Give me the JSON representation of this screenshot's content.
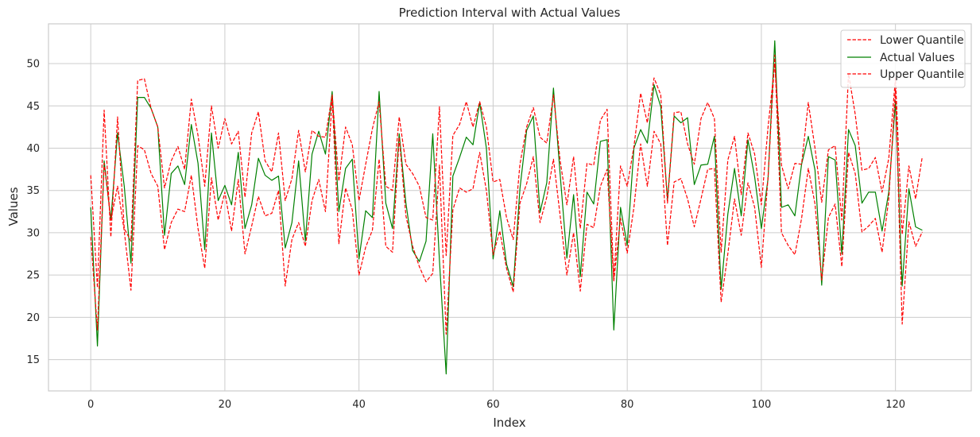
{
  "chart_data": {
    "type": "line",
    "title": "Prediction Interval with Actual Values",
    "xlabel": "Index",
    "ylabel": "Values",
    "xlim": [
      -6.3,
      131.3
    ],
    "ylim": [
      11.3,
      54.7
    ],
    "xticks": [
      0,
      20,
      40,
      60,
      80,
      100,
      120
    ],
    "yticks": [
      15,
      20,
      25,
      30,
      35,
      40,
      45,
      50
    ],
    "grid": true,
    "legend_position": "top-right",
    "series": [
      {
        "name": "Lower Quantile",
        "color": "#ff0000",
        "style": "dashed",
        "values": [
          29.5,
          18.5,
          38.2,
          31.5,
          35.5,
          30.2,
          23.2,
          40.3,
          39.8,
          37.0,
          35.5,
          28.0,
          31.2,
          32.8,
          32.5,
          36.8,
          30.5,
          25.8,
          36.5,
          31.5,
          34.8,
          30.2,
          36.3,
          27.5,
          30.8,
          34.3,
          32.0,
          32.3,
          35.0,
          23.7,
          29.2,
          31.2,
          28.4,
          33.8,
          36.3,
          32.5,
          46.0,
          28.7,
          35.3,
          32.7,
          25.0,
          28.3,
          30.3,
          38.7,
          28.4,
          27.7,
          41.3,
          32.0,
          28.4,
          26.0,
          24.2,
          25.2,
          38.0,
          18.0,
          32.7,
          35.3,
          34.8,
          35.2,
          39.5,
          35.0,
          27.4,
          30.2,
          25.8,
          23.0,
          33.5,
          35.8,
          39.0,
          31.2,
          34.2,
          38.7,
          32.0,
          25.0,
          30.0,
          23.1,
          31.0,
          30.6,
          35.5,
          37.5,
          24.3,
          31.7,
          27.6,
          33.0,
          40.5,
          35.5,
          42.0,
          40.5,
          28.5,
          36.0,
          36.4,
          34.0,
          30.7,
          34.0,
          37.5,
          37.6,
          21.8,
          27.5,
          34.0,
          29.7,
          35.9,
          33.0,
          25.9,
          36.6,
          51.0,
          30.0,
          28.5,
          27.4,
          31.7,
          37.6,
          33.4,
          24.4,
          31.8,
          33.4,
          26.0,
          39.5,
          37.0,
          30.1,
          30.8,
          31.7,
          27.7,
          34.0,
          47.0,
          19.2,
          31.3,
          28.4,
          30.1
        ]
      },
      {
        "name": "Actual Values",
        "color": "#008000",
        "style": "solid",
        "values": [
          33.0,
          16.6,
          38.5,
          31.5,
          41.8,
          35.5,
          26.4,
          46.0,
          46.0,
          44.7,
          42.5,
          29.7,
          37.0,
          37.9,
          35.7,
          42.8,
          38.2,
          28.0,
          41.8,
          33.8,
          35.6,
          33.3,
          39.5,
          30.5,
          33.3,
          38.8,
          36.8,
          36.2,
          36.7,
          28.2,
          31.2,
          38.5,
          29.0,
          39.3,
          42.0,
          39.3,
          46.7,
          32.5,
          37.6,
          38.7,
          26.9,
          32.6,
          31.8,
          46.7,
          33.5,
          30.5,
          41.7,
          33.5,
          27.9,
          26.6,
          29.0,
          41.7,
          26.7,
          13.3,
          36.7,
          38.9,
          41.3,
          40.4,
          45.4,
          40.0,
          26.9,
          32.6,
          26.3,
          23.6,
          35.2,
          42.1,
          43.8,
          32.4,
          35.9,
          47.1,
          36.9,
          27.0,
          34.5,
          24.8,
          34.8,
          33.4,
          40.8,
          41.0,
          18.5,
          33.0,
          28.5,
          40.0,
          42.2,
          40.6,
          47.5,
          44.9,
          33.9,
          43.8,
          43.0,
          43.6,
          35.7,
          38.0,
          38.1,
          41.4,
          23.3,
          32.2,
          37.6,
          32.0,
          41.0,
          36.6,
          30.5,
          36.4,
          52.7,
          33.0,
          33.3,
          32.0,
          38.1,
          41.4,
          37.4,
          23.8,
          39.0,
          38.6,
          27.5,
          42.2,
          40.3,
          33.5,
          34.8,
          34.8,
          30.2,
          34.8,
          45.6,
          23.7,
          35.2,
          30.7,
          30.3
        ]
      },
      {
        "name": "Upper Quantile",
        "color": "#ff0000",
        "style": "dashed",
        "values": [
          36.8,
          23.5,
          44.5,
          29.5,
          43.7,
          30.5,
          29.0,
          48.0,
          48.2,
          44.7,
          42.5,
          35.3,
          38.5,
          40.2,
          37.5,
          45.8,
          41.5,
          35.5,
          45.0,
          40.0,
          43.5,
          40.5,
          42.0,
          34.2,
          41.8,
          44.3,
          38.5,
          37.2,
          41.8,
          33.8,
          36.4,
          42.1,
          37.2,
          42.1,
          41.4,
          41.3,
          46.3,
          36.1,
          42.5,
          40.4,
          33.8,
          38.1,
          42.3,
          45.5,
          35.5,
          35.0,
          43.7,
          38.1,
          37.0,
          35.5,
          31.8,
          31.5,
          44.9,
          27.3,
          41.5,
          42.8,
          45.5,
          42.5,
          45.5,
          42.5,
          36.0,
          36.3,
          31.8,
          29.2,
          38.1,
          42.5,
          44.8,
          41.3,
          40.6,
          46.3,
          38.5,
          33.3,
          39.0,
          30.5,
          38.2,
          38.0,
          43.3,
          44.6,
          24.4,
          37.9,
          35.5,
          40.2,
          46.5,
          43.0,
          48.3,
          46.3,
          33.5,
          44.2,
          44.3,
          40.5,
          38.1,
          43.5,
          45.4,
          43.5,
          27.7,
          38.6,
          41.4,
          34.5,
          41.8,
          39.3,
          33.3,
          42.5,
          50.0,
          38.0,
          35.2,
          38.2,
          38.1,
          45.4,
          40.0,
          33.6,
          39.8,
          40.3,
          31.5,
          48.8,
          44.0,
          37.4,
          37.6,
          38.9,
          34.8,
          38.8,
          48.3,
          29.8,
          37.9,
          34.0,
          39.0
        ]
      }
    ]
  }
}
